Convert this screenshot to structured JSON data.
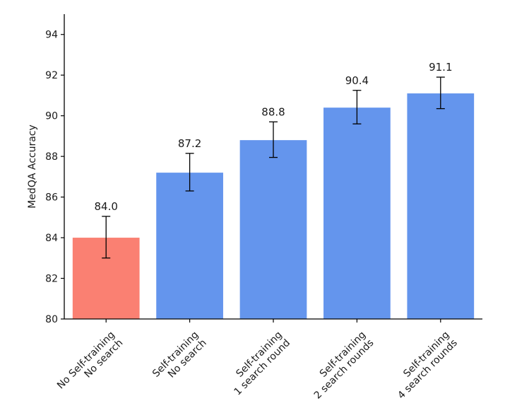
{
  "chart_data": {
    "type": "bar",
    "title": "",
    "xlabel": "",
    "ylabel": "MedQA Accuracy",
    "ylim": [
      80,
      95
    ],
    "yticks": [
      "80",
      "82",
      "84",
      "86",
      "88",
      "90",
      "92",
      "94"
    ],
    "grid": false,
    "categories": [
      [
        "No Self-training",
        "No search"
      ],
      [
        "Self-training",
        "No search"
      ],
      [
        "Self-training",
        "1 search round"
      ],
      [
        "Self-training",
        "2 search rounds"
      ],
      [
        "Self-training",
        "4 search rounds"
      ]
    ],
    "values": [
      84.0,
      87.2,
      88.8,
      90.4,
      91.1
    ],
    "value_labels": [
      "84.0",
      "87.2",
      "88.8",
      "90.4",
      "91.1"
    ],
    "error_low": [
      83.0,
      86.3,
      87.95,
      89.6,
      90.35
    ],
    "error_high": [
      85.05,
      88.15,
      89.7,
      91.25,
      91.9
    ],
    "colors": [
      "#fa8072",
      "#6495ed",
      "#6495ed",
      "#6495ed",
      "#6495ed"
    ],
    "axis_color": "#000000"
  }
}
